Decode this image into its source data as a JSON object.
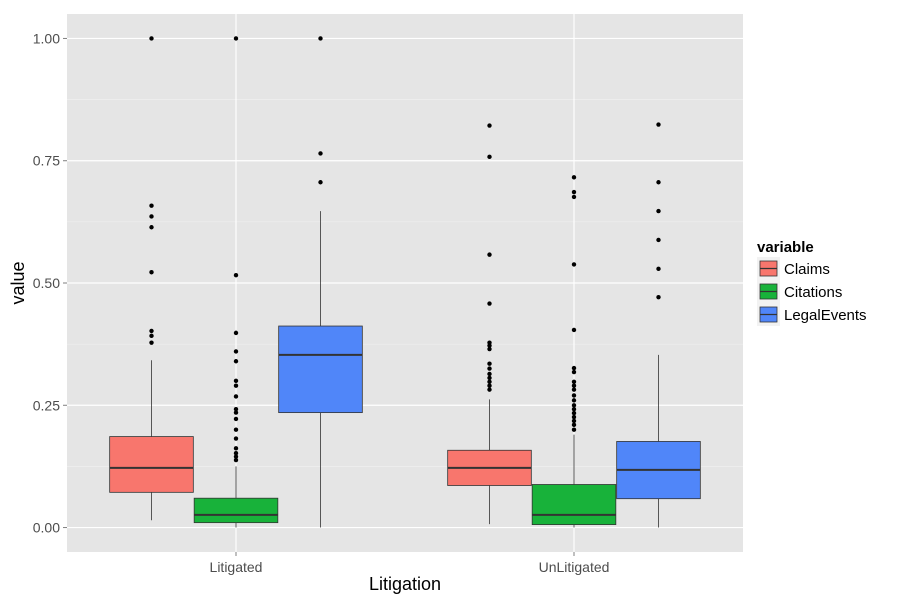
{
  "chart_data": {
    "type": "boxplot",
    "xlabel": "Litigation",
    "ylabel": "value",
    "categories": [
      "Litigated",
      "UnLitigated"
    ],
    "ylim": [
      -0.05,
      1.05
    ],
    "yticks": [
      0.0,
      0.25,
      0.5,
      0.75,
      1.0
    ],
    "ytick_labels": [
      "0.00",
      "0.25",
      "0.50",
      "0.75",
      "1.00"
    ],
    "grid": true,
    "legend": {
      "title": "variable",
      "position": "right"
    },
    "colors": {
      "Claims": "#f8766d",
      "Citations": "#18b23a",
      "LegalEvents": "#5086f9"
    },
    "series": [
      {
        "name": "Claims",
        "boxes": [
          {
            "category": "Litigated",
            "whisker_low": 0.015,
            "q1": 0.072,
            "median": 0.122,
            "q3": 0.186,
            "whisker_high": 0.342,
            "outliers": [
              0.378,
              0.392,
              0.402,
              0.522,
              0.614,
              0.636,
              0.658,
              1.0
            ]
          },
          {
            "category": "UnLitigated",
            "whisker_low": 0.007,
            "q1": 0.086,
            "median": 0.122,
            "q3": 0.158,
            "whisker_high": 0.262,
            "outliers": [
              0.282,
              0.29,
              0.298,
              0.306,
              0.314,
              0.325,
              0.335,
              0.365,
              0.372,
              0.378,
              0.458,
              0.558,
              0.758,
              0.822
            ]
          }
        ]
      },
      {
        "name": "Citations",
        "boxes": [
          {
            "category": "Litigated",
            "whisker_low": 0.0,
            "q1": 0.01,
            "median": 0.026,
            "q3": 0.06,
            "whisker_high": 0.125,
            "outliers": [
              0.138,
              0.145,
              0.152,
              0.162,
              0.182,
              0.2,
              0.222,
              0.235,
              0.242,
              0.268,
              0.29,
              0.3,
              0.34,
              0.36,
              0.398,
              0.516,
              1.0
            ]
          },
          {
            "category": "UnLitigated",
            "whisker_low": 0.0,
            "q1": 0.006,
            "median": 0.026,
            "q3": 0.088,
            "whisker_high": 0.19,
            "outliers": [
              0.2,
              0.21,
              0.218,
              0.226,
              0.234,
              0.242,
              0.25,
              0.26,
              0.27,
              0.282,
              0.29,
              0.298,
              0.318,
              0.326,
              0.404,
              0.538,
              0.676,
              0.686,
              0.716
            ]
          }
        ]
      },
      {
        "name": "LegalEvents",
        "boxes": [
          {
            "category": "Litigated",
            "whisker_low": 0.0,
            "q1": 0.235,
            "median": 0.353,
            "q3": 0.412,
            "whisker_high": 0.647,
            "outliers": [
              0.706,
              0.765,
              1.0
            ]
          },
          {
            "category": "UnLitigated",
            "whisker_low": 0.0,
            "q1": 0.059,
            "median": 0.118,
            "q3": 0.176,
            "whisker_high": 0.353,
            "outliers": [
              0.471,
              0.529,
              0.588,
              0.647,
              0.706,
              0.824
            ]
          }
        ]
      }
    ]
  }
}
